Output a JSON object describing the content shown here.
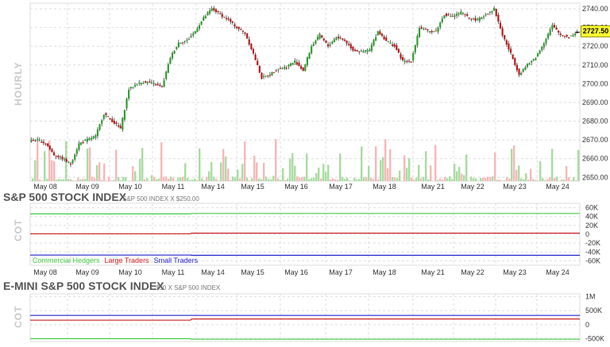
{
  "panels": {
    "price": {
      "side_label": "HOURLY",
      "last_price": "2727.50",
      "y_ticks": [
        "2740.00",
        "2730.00",
        "2720.00",
        "2710.00",
        "2700.00",
        "2690.00",
        "2680.00",
        "2670.00",
        "2660.00",
        "2650.00"
      ],
      "x_ticks": [
        "May 08",
        "May 09",
        "May 10",
        "May 11",
        "May 14",
        "May 15",
        "May 16",
        "May 17",
        "May 18",
        "May 21",
        "May 22",
        "May 23",
        "May 24"
      ]
    },
    "cot1": {
      "title": "S&P 500 STOCK INDEX",
      "subtitle": "S&P 500 INDEX X $250.00",
      "side_label": "COT",
      "y_ticks": [
        "60K",
        "40K",
        "20K",
        "0",
        "-20K",
        "-40K",
        "-60K"
      ],
      "legend": [
        {
          "label": "Commercial Hedgers",
          "color": "#44cc44"
        },
        {
          "label": "Large Traders",
          "color": "#cc2222"
        },
        {
          "label": "Small Traders",
          "color": "#2222cc"
        }
      ],
      "x_ticks": [
        "May 08",
        "May 09",
        "May 10",
        "May 11",
        "May 14",
        "May 15",
        "May 16",
        "May 17",
        "May 18",
        "May 21",
        "May 22",
        "May 23",
        "May 24"
      ]
    },
    "cot2": {
      "title": "E-MINI S&P 500 STOCK INDEX",
      "subtitle": "$50 X S&P 500 INDEX",
      "side_label": "COT",
      "y_ticks": [
        "1M",
        "500K",
        "0",
        "-500K"
      ]
    }
  },
  "chart_data": [
    {
      "type": "candlestick",
      "ylim": [
        2648,
        2743
      ],
      "x": [
        "May 08",
        "May 09",
        "May 10",
        "May 11",
        "May 14",
        "May 15",
        "May 16",
        "May 17",
        "May 18",
        "May 21",
        "May 22",
        "May 23",
        "May 24"
      ],
      "close_path": [
        [
          "May 08",
          2670
        ],
        [
          "May 08",
          2668
        ],
        [
          "May 08",
          2662
        ],
        [
          "May 08",
          2660
        ],
        [
          "May 08",
          2657
        ],
        [
          "May 09",
          2668
        ],
        [
          "May 09",
          2670
        ],
        [
          "May 09",
          2672
        ],
        [
          "May 09",
          2684
        ],
        [
          "May 09",
          2680
        ],
        [
          "May 09",
          2676
        ],
        [
          "May 10",
          2697
        ],
        [
          "May 10",
          2700
        ],
        [
          "May 10",
          2701
        ],
        [
          "May 10",
          2700
        ],
        [
          "May 10",
          2698
        ],
        [
          "May 11",
          2714
        ],
        [
          "May 11",
          2722
        ],
        [
          "May 11",
          2723
        ],
        [
          "May 11",
          2728
        ],
        [
          "May 11",
          2735
        ],
        [
          "May 14",
          2740
        ],
        [
          "May 14",
          2737
        ],
        [
          "May 14",
          2734
        ],
        [
          "May 14",
          2730
        ],
        [
          "May 14",
          2727
        ],
        [
          "May 15",
          2716
        ],
        [
          "May 15",
          2703
        ],
        [
          "May 15",
          2705
        ],
        [
          "May 15",
          2708
        ],
        [
          "May 15",
          2709
        ],
        [
          "May 16",
          2712
        ],
        [
          "May 16",
          2707
        ],
        [
          "May 16",
          2720
        ],
        [
          "May 16",
          2726
        ],
        [
          "May 16",
          2720
        ],
        [
          "May 17",
          2725
        ],
        [
          "May 17",
          2723
        ],
        [
          "May 17",
          2718
        ],
        [
          "May 17",
          2717
        ],
        [
          "May 17",
          2718
        ],
        [
          "May 18",
          2728
        ],
        [
          "May 18",
          2723
        ],
        [
          "May 18",
          2720
        ],
        [
          "May 18",
          2712
        ],
        [
          "May 18",
          2712
        ],
        [
          "May 21",
          2730
        ],
        [
          "May 21",
          2728
        ],
        [
          "May 21",
          2728
        ],
        [
          "May 21",
          2737
        ],
        [
          "May 21",
          2736
        ],
        [
          "May 22",
          2738
        ],
        [
          "May 22",
          2735
        ],
        [
          "May 22",
          2734
        ],
        [
          "May 22",
          2737
        ],
        [
          "May 22",
          2740
        ],
        [
          "May 23",
          2726
        ],
        [
          "May 23",
          2716
        ],
        [
          "May 23",
          2705
        ],
        [
          "May 23",
          2710
        ],
        [
          "May 23",
          2714
        ],
        [
          "May 24",
          2722
        ],
        [
          "May 24",
          2731
        ],
        [
          "May 24",
          2726
        ],
        [
          "May 24",
          2725
        ],
        [
          "May 24",
          2727.5
        ]
      ],
      "last": 2727.5
    },
    {
      "type": "line",
      "ylim": [
        -70000,
        70000
      ],
      "series": [
        {
          "name": "Commercial Hedgers",
          "color": "#44cc44",
          "values": [
            46000,
            46000,
            47000,
            47000
          ]
        },
        {
          "name": "Large Traders",
          "color": "#cc2222",
          "values": [
            1000,
            1000,
            2500,
            2500
          ]
        },
        {
          "name": "Small Traders",
          "color": "#2222cc",
          "values": [
            -47000,
            -47000,
            -47500,
            -47500
          ]
        }
      ]
    },
    {
      "type": "line",
      "ylim": [
        -600000,
        1100000
      ],
      "series": [
        {
          "color": "#44cc44",
          "values": [
            -500000,
            -500000,
            -520000,
            -520000
          ]
        },
        {
          "color": "#cc2222",
          "values": [
            160000,
            160000,
            200000,
            200000
          ]
        },
        {
          "color": "#2222cc",
          "values": [
            330000,
            330000,
            330000,
            330000
          ]
        }
      ]
    }
  ]
}
